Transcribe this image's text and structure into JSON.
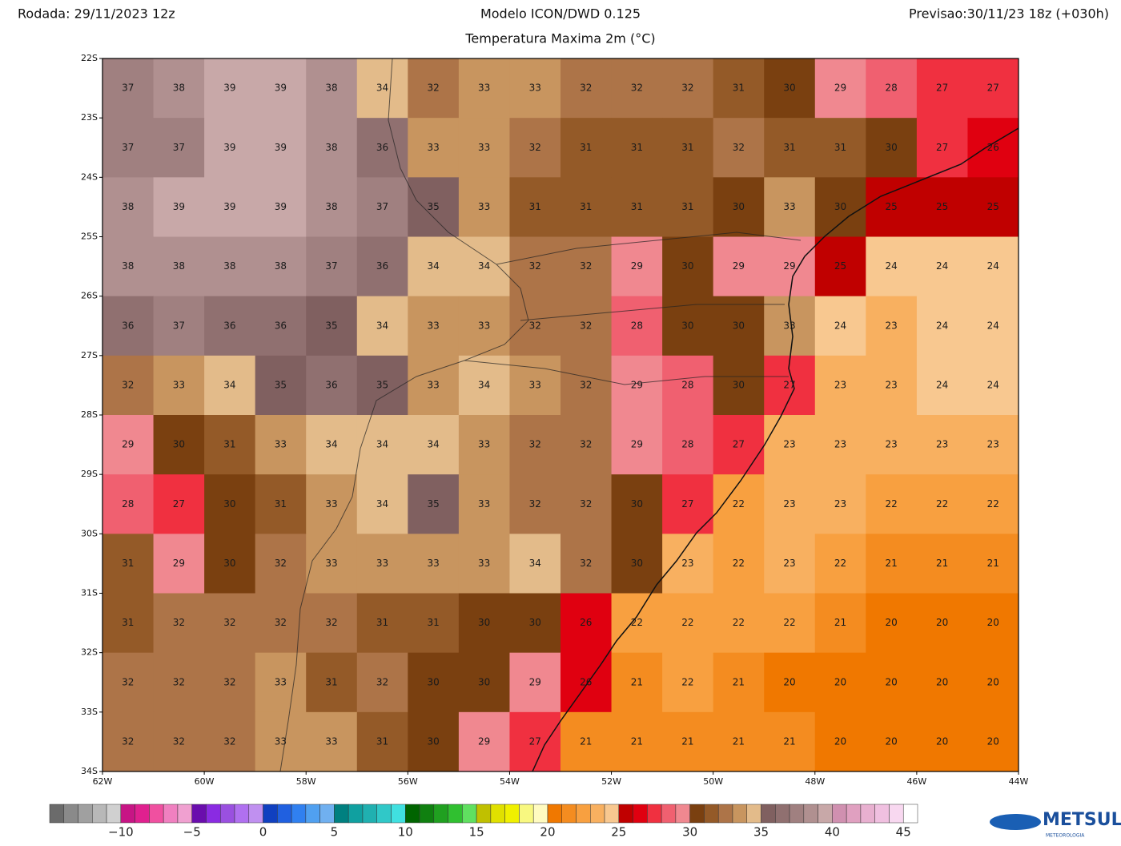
{
  "header": {
    "run": "Rodada: 29/11/2023 12z",
    "model": "Modelo ICON/DWD 0.125",
    "variable": "Temperatura Maxima 2m (°C)",
    "forecast": "Previsao:30/11/23 18z (+030h)"
  },
  "map": {
    "lon_range": [
      -62,
      -44
    ],
    "lat_range": [
      -22,
      -34
    ],
    "lat_labels": [
      {
        "value": -22,
        "label": "22S"
      },
      {
        "value": -23,
        "label": "23S"
      },
      {
        "value": -24,
        "label": "24S"
      },
      {
        "value": -25,
        "label": "25S"
      },
      {
        "value": -26,
        "label": "26S"
      },
      {
        "value": -27,
        "label": "27S"
      },
      {
        "value": -28,
        "label": "28S"
      },
      {
        "value": -29,
        "label": "29S"
      },
      {
        "value": -30,
        "label": "30S"
      },
      {
        "value": -31,
        "label": "31S"
      },
      {
        "value": -32,
        "label": "32S"
      },
      {
        "value": -33,
        "label": "33S"
      },
      {
        "value": -34,
        "label": "34S"
      }
    ],
    "lon_labels": [
      {
        "value": -62,
        "label": "62W"
      },
      {
        "value": -60,
        "label": "60W"
      },
      {
        "value": -58,
        "label": "58W"
      },
      {
        "value": -56,
        "label": "56W"
      },
      {
        "value": -54,
        "label": "54W"
      },
      {
        "value": -52,
        "label": "52W"
      },
      {
        "value": -50,
        "label": "50W"
      },
      {
        "value": -48,
        "label": "48W"
      },
      {
        "value": -46,
        "label": "46W"
      },
      {
        "value": -44,
        "label": "44W"
      }
    ],
    "grid_lons": [
      -61.5,
      -60.5,
      -59.5,
      -58.5,
      -57.5,
      -56.5,
      -55.5,
      -54.5,
      -53.5,
      -52.5,
      -51.5,
      -50.5,
      -49.5,
      -48.5,
      -47.5,
      -46.5,
      -45.5,
      -44.5
    ],
    "grid_lats": [
      -22.5,
      -23.5,
      -24.5,
      -25.5,
      -26.5,
      -27.5,
      -28.5,
      -29.5,
      -30.5,
      -31.5,
      -32.5,
      -33.5
    ],
    "values": [
      [
        37,
        38,
        39,
        39,
        38,
        34,
        32,
        33,
        33,
        32,
        32,
        32,
        31,
        30,
        29,
        28,
        27,
        27
      ],
      [
        37,
        37,
        39,
        39,
        38,
        36,
        33,
        33,
        32,
        31,
        31,
        31,
        32,
        31,
        31,
        30,
        27,
        26
      ],
      [
        38,
        39,
        39,
        39,
        38,
        37,
        35,
        33,
        31,
        31,
        31,
        31,
        30,
        33,
        30,
        25,
        25,
        25
      ],
      [
        38,
        38,
        38,
        38,
        37,
        36,
        34,
        34,
        32,
        32,
        29,
        30,
        29,
        29,
        25,
        24,
        24,
        24
      ],
      [
        36,
        37,
        36,
        36,
        35,
        34,
        33,
        33,
        32,
        32,
        28,
        30,
        30,
        33,
        24,
        23,
        24,
        24
      ],
      [
        32,
        33,
        34,
        35,
        36,
        35,
        33,
        34,
        33,
        32,
        29,
        28,
        30,
        27,
        23,
        23,
        24,
        24
      ],
      [
        29,
        30,
        31,
        33,
        34,
        34,
        34,
        33,
        32,
        32,
        29,
        28,
        27,
        23,
        23,
        23,
        23,
        23
      ],
      [
        28,
        27,
        30,
        31,
        33,
        34,
        35,
        33,
        32,
        32,
        30,
        27,
        22,
        23,
        23,
        22,
        22,
        22
      ],
      [
        31,
        29,
        30,
        32,
        33,
        33,
        33,
        33,
        34,
        32,
        30,
        23,
        22,
        23,
        22,
        21,
        21,
        21
      ],
      [
        31,
        32,
        32,
        32,
        32,
        31,
        31,
        30,
        30,
        26,
        22,
        22,
        22,
        22,
        21,
        20,
        20,
        20
      ],
      [
        32,
        32,
        32,
        33,
        31,
        32,
        30,
        30,
        29,
        26,
        21,
        22,
        21,
        20,
        20,
        20,
        20,
        20
      ],
      [
        32,
        32,
        32,
        33,
        33,
        31,
        30,
        29,
        27,
        21,
        21,
        21,
        21,
        21,
        20,
        20,
        20,
        20
      ]
    ]
  },
  "colorbar": {
    "min": -15,
    "ticks": [
      {
        "value": -10,
        "label": "−10"
      },
      {
        "value": -5,
        "label": "−5"
      },
      0,
      5,
      10,
      15,
      20,
      25,
      30,
      35,
      40,
      45
    ],
    "colors": [
      "#6b6b6b",
      "#8a8a8a",
      "#a0a0a0",
      "#b8b8b8",
      "#d0d0d0",
      "#c71585",
      "#e0208f",
      "#f050a0",
      "#f080c0",
      "#f0a0d0",
      "#6a0dad",
      "#8a2be2",
      "#9a50e0",
      "#b070f0",
      "#c090f0",
      "#1040c0",
      "#2060e0",
      "#3080f0",
      "#50a0f0",
      "#70b0f0",
      "#008080",
      "#10a0a0",
      "#20b0b0",
      "#30c8c8",
      "#40e0e0",
      "#006400",
      "#108010",
      "#20a020",
      "#30c030",
      "#60e060",
      "#c0c000",
      "#e0e000",
      "#f0f000",
      "#f8f880",
      "#fffbc0",
      "#f07800",
      "#f48c20",
      "#f8a040",
      "#f8b060",
      "#f8c890",
      "#c00000",
      "#e00010",
      "#f03040",
      "#f06070",
      "#f08890",
      "#7a4010",
      "#945a28",
      "#ad7448",
      "#c8955f",
      "#e3bb8a",
      "#806060",
      "#907070",
      "#a08080",
      "#b09090",
      "#c8a8a8",
      "#d090b0",
      "#e0a0c0",
      "#e8b0d0",
      "#f0c0e0",
      "#f8d8f0",
      "#ffffff"
    ]
  },
  "logo": {
    "name": "METSUL",
    "tagline": "METEOROLOGIA"
  }
}
